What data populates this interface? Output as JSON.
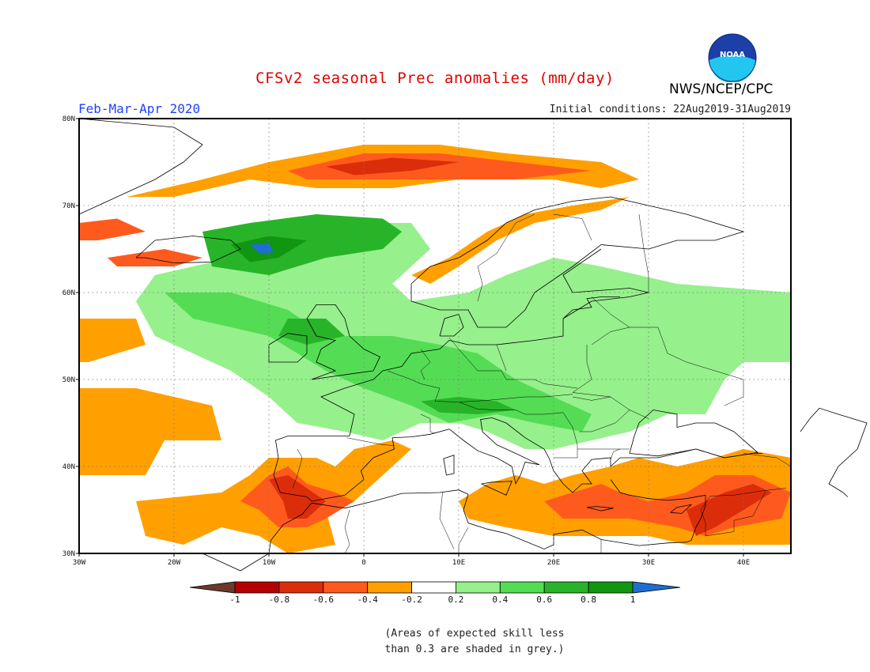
{
  "header": {
    "title": "CFSv2 seasonal Prec anomalies (mm/day)",
    "period": "Feb-Mar-Apr 2020",
    "initial_conditions": "Initial conditions: 22Aug2019-31Aug2019",
    "organization": "NWS/NCEP/CPC",
    "logo_text": "NOAA"
  },
  "map": {
    "lon_range": [
      -30,
      45
    ],
    "lat_range": [
      30,
      80
    ],
    "lon_ticks": [
      "30W",
      "20W",
      "10W",
      "0",
      "10E",
      "20E",
      "30E",
      "40E"
    ],
    "lat_ticks": [
      "80N",
      "70N",
      "60N",
      "50N",
      "40N",
      "30N"
    ]
  },
  "legend": {
    "bins": [
      {
        "color": "#6b3a2a"
      },
      {
        "color": "#b40000"
      },
      {
        "color": "#dc2d0a"
      },
      {
        "color": "#ff5a1e"
      },
      {
        "color": "#ffa000"
      },
      {
        "color": "#ffffff"
      },
      {
        "color": "#96f08c"
      },
      {
        "color": "#55dc55"
      },
      {
        "color": "#28b428"
      },
      {
        "color": "#109610"
      },
      {
        "color": "#1e6ed2"
      }
    ],
    "labels": [
      "-1",
      "-0.8",
      "-0.6",
      "-0.4",
      "-0.2",
      "0.2",
      "0.4",
      "0.6",
      "0.8",
      "1"
    ]
  },
  "note": {
    "line1": "(Areas of expected skill less",
    "line2": "than 0.3 are shaded in grey.)"
  }
}
